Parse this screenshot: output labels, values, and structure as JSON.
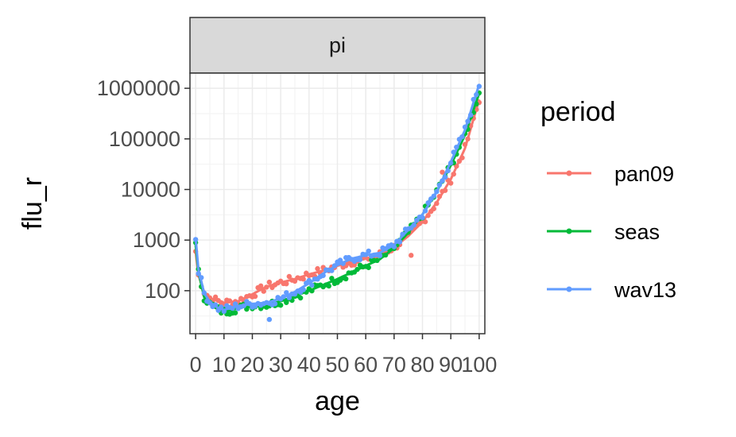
{
  "chart_data": {
    "type": "scatter",
    "facet": "pi",
    "xlabel": "age",
    "ylabel": "flu_r",
    "xlim": [
      -2,
      102
    ],
    "ylim_log10": [
      1.15,
      6.3
    ],
    "y_scale": "log10",
    "x_ticks": [
      0,
      10,
      20,
      30,
      40,
      50,
      60,
      70,
      80,
      90,
      100
    ],
    "x_tick_labels": [
      "0",
      "10",
      "20",
      "30",
      "40",
      "50",
      "60",
      "70",
      "80",
      "90",
      "100"
    ],
    "y_ticks": [
      100,
      1000,
      10000,
      100000,
      1000000
    ],
    "y_tick_labels": [
      "100",
      "1000",
      "10000",
      "100000",
      "1000000"
    ],
    "grid": true,
    "legend": {
      "title": "period",
      "position": "right"
    },
    "series": [
      {
        "name": "pan09",
        "color": "#F8766D",
        "anchors": [
          [
            0,
            600
          ],
          [
            1,
            200
          ],
          [
            3,
            95
          ],
          [
            5,
            72
          ],
          [
            8,
            62
          ],
          [
            10,
            58
          ],
          [
            15,
            62
          ],
          [
            20,
            85
          ],
          [
            25,
            120
          ],
          [
            30,
            145
          ],
          [
            35,
            170
          ],
          [
            40,
            210
          ],
          [
            45,
            250
          ],
          [
            50,
            310
          ],
          [
            55,
            370
          ],
          [
            60,
            430
          ],
          [
            65,
            520
          ],
          [
            70,
            720
          ],
          [
            75,
            1200
          ],
          [
            80,
            2300
          ],
          [
            85,
            5500
          ],
          [
            90,
            16000
          ],
          [
            95,
            65000
          ],
          [
            100,
            600000
          ]
        ],
        "outliers": [
          [
            76,
            500
          ],
          [
            87,
            22000
          ]
        ]
      },
      {
        "name": "seas",
        "color": "#00BA38",
        "anchors": [
          [
            0,
            800
          ],
          [
            1,
            230
          ],
          [
            3,
            75
          ],
          [
            5,
            55
          ],
          [
            8,
            42
          ],
          [
            10,
            38
          ],
          [
            15,
            45
          ],
          [
            20,
            52
          ],
          [
            25,
            52
          ],
          [
            30,
            62
          ],
          [
            35,
            78
          ],
          [
            40,
            100
          ],
          [
            45,
            130
          ],
          [
            50,
            170
          ],
          [
            55,
            230
          ],
          [
            60,
            310
          ],
          [
            65,
            420
          ],
          [
            70,
            700
          ],
          [
            75,
            1400
          ],
          [
            80,
            3200
          ],
          [
            85,
            9000
          ],
          [
            90,
            30000
          ],
          [
            95,
            120000
          ],
          [
            100,
            800000
          ]
        ],
        "outliers": []
      },
      {
        "name": "wav13",
        "color": "#619CFF",
        "anchors": [
          [
            0,
            1100
          ],
          [
            1,
            260
          ],
          [
            3,
            90
          ],
          [
            5,
            60
          ],
          [
            8,
            45
          ],
          [
            10,
            42
          ],
          [
            15,
            50
          ],
          [
            20,
            55
          ],
          [
            25,
            58
          ],
          [
            30,
            70
          ],
          [
            35,
            95
          ],
          [
            40,
            140
          ],
          [
            45,
            220
          ],
          [
            50,
            320
          ],
          [
            55,
            430
          ],
          [
            60,
            500
          ],
          [
            65,
            560
          ],
          [
            70,
            800
          ],
          [
            75,
            1600
          ],
          [
            80,
            3200
          ],
          [
            85,
            9000
          ],
          [
            90,
            35000
          ],
          [
            95,
            150000
          ],
          [
            100,
            1200000
          ]
        ],
        "outliers": [
          [
            26,
            27
          ]
        ]
      }
    ]
  }
}
